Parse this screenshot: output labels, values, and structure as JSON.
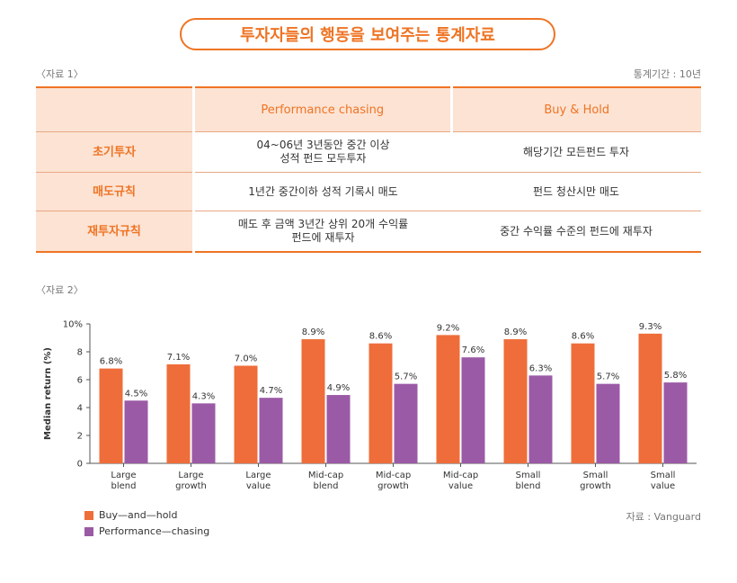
{
  "title": "투자자들의 행동을 보여주는 통계자료",
  "table_section": {
    "caption": "〈자료 1〉",
    "period": "통계기간 : 10년",
    "columns": [
      "",
      "Performance chasing",
      "Buy & Hold"
    ],
    "rows": [
      {
        "label": "초기투자",
        "performance": "04~06년 3년동안 중간 이상\n성적 펀드 모두투자",
        "buyhold": "해당기간 모든펀드 투자"
      },
      {
        "label": "매도규칙",
        "performance": "1년간 중간이하 성적 기록시 매도",
        "buyhold": "펀드 청산시만 매도"
      },
      {
        "label": "재투자규칙",
        "performance": "매도 후 금액 3년간 상위 20개 수익률\n펀드에 재투자",
        "buyhold": "중간 수익률 수준의 펀드에 재투자"
      }
    ]
  },
  "chart_section": {
    "caption": "〈자료 2〉",
    "source": "자료 : Vanguard"
  },
  "colors": {
    "accent": "#ef7424",
    "buy_hold": "#ef6d3a",
    "perf_chasing": "#9b5aa6",
    "pale": "#fce3d4"
  },
  "chart_data": {
    "type": "bar",
    "categories": [
      [
        "Large",
        "blend"
      ],
      [
        "Large",
        "growth"
      ],
      [
        "Large",
        "value"
      ],
      [
        "Mid-cap",
        "blend"
      ],
      [
        "Mid-cap",
        "growth"
      ],
      [
        "Mid-cap",
        "value"
      ],
      [
        "Small",
        "blend"
      ],
      [
        "Small",
        "growth"
      ],
      [
        "Small",
        "value"
      ]
    ],
    "series": [
      {
        "name": "Buy-and-hold",
        "color": "#ef6d3a",
        "values": [
          6.8,
          7.1,
          7.0,
          8.9,
          8.6,
          9.2,
          8.9,
          8.6,
          9.3
        ],
        "labels": [
          "6.8%",
          "7.1%",
          "7.0%",
          "8.9%",
          "8.6%",
          "9.2%",
          "8.9%",
          "8.6%",
          "9.3%"
        ]
      },
      {
        "name": "Performance-chasing",
        "color": "#9b5aa6",
        "values": [
          4.5,
          4.3,
          4.7,
          4.9,
          5.7,
          7.6,
          6.3,
          5.7,
          5.8
        ],
        "labels": [
          "4.5%",
          "4.3%",
          "4.7%",
          "4.9%",
          "5.7%",
          "7.6%",
          "6.3%",
          "5.7%",
          "5.8%"
        ]
      }
    ],
    "ylabel": "Median return (%)",
    "yticks": [
      0,
      2,
      4,
      6,
      8,
      10
    ],
    "ytick_labels": [
      "0",
      "2",
      "4",
      "6",
      "8",
      "10%"
    ],
    "ylim": [
      0,
      10
    ],
    "grid": false,
    "legend": [
      "Buy—and—hold",
      "Performance—chasing"
    ]
  }
}
